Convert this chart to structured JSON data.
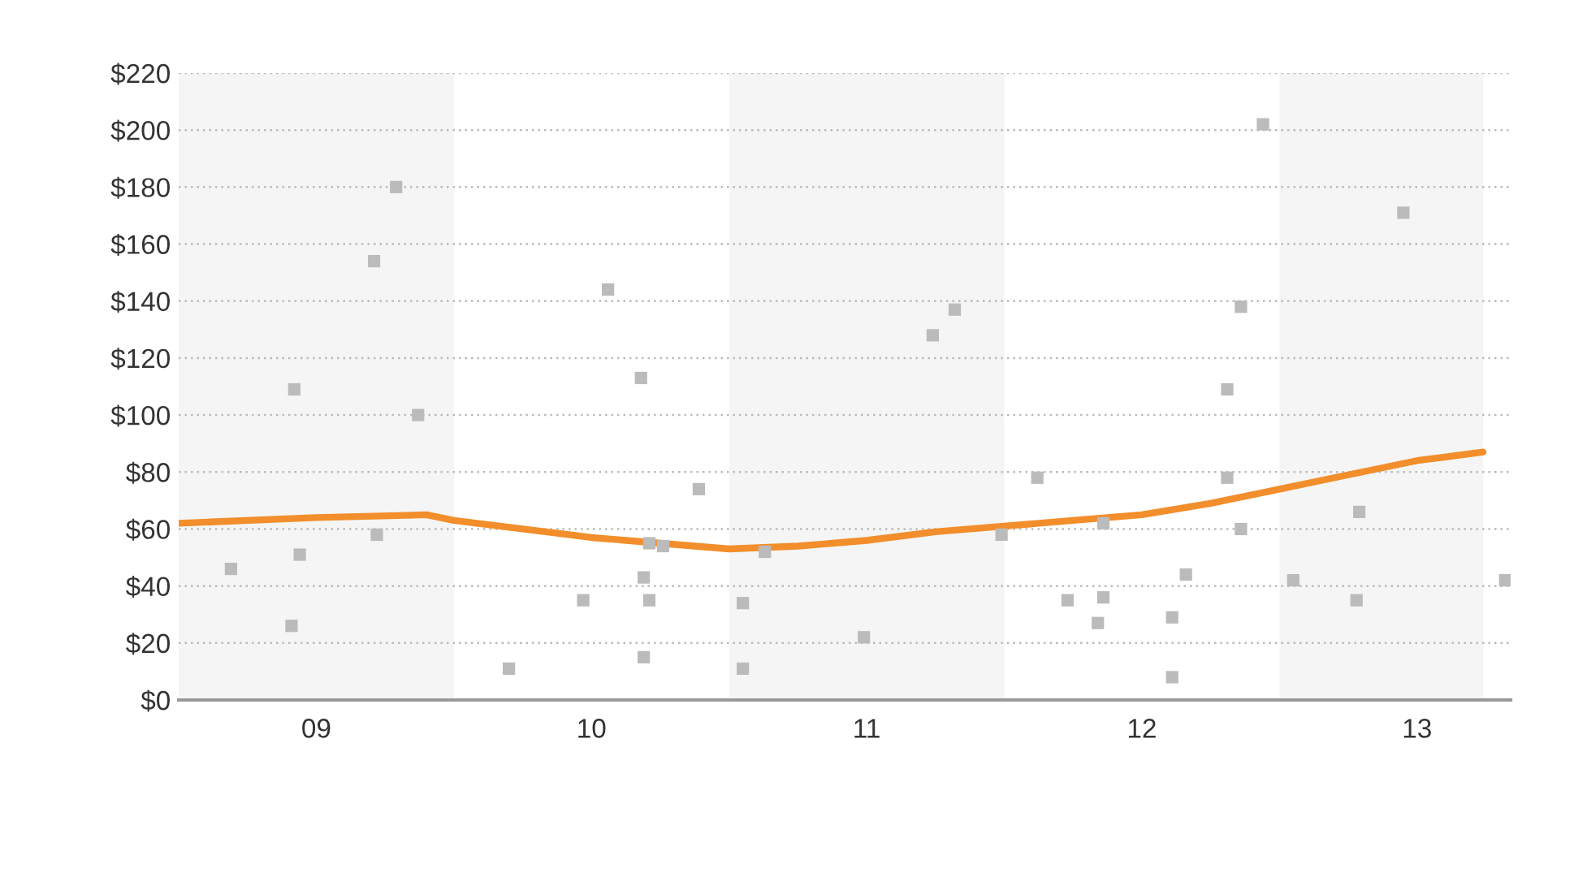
{
  "chart_data": {
    "type": "scatter",
    "xlim": [
      8.5,
      13.34
    ],
    "ylim": [
      0,
      220
    ],
    "xticks": [
      {
        "value": 9,
        "label": "09"
      },
      {
        "value": 10,
        "label": "10"
      },
      {
        "value": 11,
        "label": "11"
      },
      {
        "value": 12,
        "label": "12"
      },
      {
        "value": 13,
        "label": "13"
      }
    ],
    "yticks": [
      {
        "value": 0,
        "label": "$0"
      },
      {
        "value": 20,
        "label": "$20"
      },
      {
        "value": 40,
        "label": "$40"
      },
      {
        "value": 60,
        "label": "$60"
      },
      {
        "value": 80,
        "label": "$80"
      },
      {
        "value": 100,
        "label": "$100"
      },
      {
        "value": 120,
        "label": "$120"
      },
      {
        "value": 140,
        "label": "$140"
      },
      {
        "value": 160,
        "label": "$160"
      },
      {
        "value": 180,
        "label": "$180"
      },
      {
        "value": 200,
        "label": "$200"
      },
      {
        "value": 220,
        "label": "$220"
      }
    ],
    "grid": "y",
    "bands": [
      {
        "axis": "x",
        "from": 8.5,
        "to": 9.5,
        "color": "#f5f5f5"
      },
      {
        "axis": "x",
        "from": 10.5,
        "to": 11.5,
        "color": "#f5f5f5"
      },
      {
        "axis": "x",
        "from": 12.5,
        "to": 13.24,
        "color": "#f5f5f5"
      }
    ],
    "series": [
      {
        "color": "#bbbbbb",
        "marker": "square",
        "x": [
          8.69,
          8.92,
          8.94,
          8.91,
          9.21,
          9.22,
          9.29,
          9.37,
          9.7,
          9.97,
          10.06,
          10.18,
          10.19,
          10.19,
          10.21,
          10.21,
          10.26,
          10.39,
          10.55,
          10.55,
          10.63,
          10.99,
          11.24,
          11.32,
          11.49,
          11.62,
          11.73,
          11.84,
          11.86,
          11.86,
          12.11,
          12.11,
          12.16,
          12.31,
          12.31,
          12.36,
          12.36,
          12.44,
          12.55,
          12.79,
          12.78,
          12.95,
          13.32
        ],
        "values": [
          46,
          109,
          51,
          26,
          154,
          58,
          180,
          100,
          11,
          35,
          144,
          113,
          43,
          15,
          35,
          55,
          54,
          74,
          34,
          11,
          52,
          22,
          128,
          137,
          58,
          78,
          35,
          27,
          36,
          62,
          29,
          8,
          44,
          78,
          109,
          60,
          138,
          202,
          42,
          66,
          35,
          171,
          42
        ]
      },
      {
        "type": "line",
        "color": "#f28e2b",
        "marker": "none",
        "line_style": "solid",
        "x": [
          8.5,
          9.0,
          9.4,
          9.5,
          9.75,
          10.0,
          10.25,
          10.5,
          10.75,
          11.0,
          11.25,
          11.5,
          11.75,
          12.0,
          12.25,
          12.5,
          12.75,
          13.0,
          13.24
        ],
        "values": [
          62,
          64,
          65,
          63,
          60,
          57,
          55,
          53,
          54,
          56,
          59,
          61,
          63,
          65,
          69,
          74,
          79,
          84,
          87
        ]
      }
    ]
  }
}
